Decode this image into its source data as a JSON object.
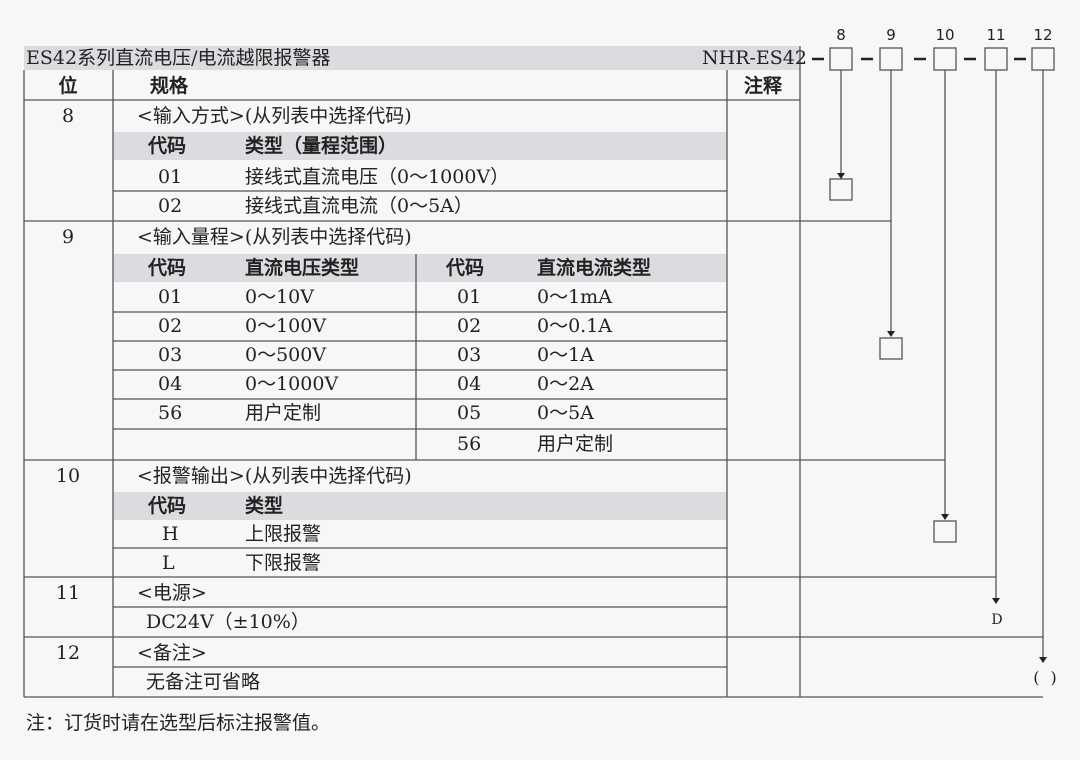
{
  "title": "ES42系列直流电压/电流越限报警器",
  "model": "NHR-ES42",
  "header": {
    "position": "位",
    "spec": "规格",
    "note": "注释"
  },
  "code_positions": [
    "8",
    "9",
    "10",
    "11",
    "12"
  ],
  "sections": [
    {
      "pos": "8",
      "title": "<输入方式>(从列表中选择代码)",
      "col_code": "代码",
      "col_type": "类型（量程范围）",
      "rows": [
        {
          "code": "01",
          "type": "接线式直流电压（0～1000V）"
        },
        {
          "code": "02",
          "type": "接线式直流电流（0～5A）"
        }
      ]
    },
    {
      "pos": "9",
      "title": "<输入量程>(从列表中选择代码)",
      "col_code": "代码",
      "col_type": "直流电压类型",
      "col_code2": "代码",
      "col_type2": "直流电流类型",
      "left": [
        {
          "code": "01",
          "type": "0～10V"
        },
        {
          "code": "02",
          "type": "0～100V"
        },
        {
          "code": "03",
          "type": "0～500V"
        },
        {
          "code": "04",
          "type": "0～1000V"
        },
        {
          "code": "56",
          "type": "用户定制"
        }
      ],
      "right": [
        {
          "code": "01",
          "type": "0～1mA"
        },
        {
          "code": "02",
          "type": "0～0.1A"
        },
        {
          "code": "03",
          "type": "0～1A"
        },
        {
          "code": "04",
          "type": "0～2A"
        },
        {
          "code": "05",
          "type": "0～5A"
        },
        {
          "code": "56",
          "type": "用户定制"
        }
      ]
    },
    {
      "pos": "10",
      "title": "<报警输出>(从列表中选择代码)",
      "col_code": "代码",
      "col_type": "类型",
      "rows": [
        {
          "code": "H",
          "type": "上限报警"
        },
        {
          "code": "L",
          "type": "下限报警"
        }
      ]
    },
    {
      "pos": "11",
      "title": "<电源>",
      "value": "DC24V（±10%）",
      "result": "D"
    },
    {
      "pos": "12",
      "title": "<备注>",
      "value": "无备注可省略",
      "result": "( )"
    }
  ],
  "footnote": "注：订货时请在选型后标注报警值。",
  "colors": {
    "background": "#f7f7f7",
    "header_fill": "#dcdce0",
    "line": "#555555"
  }
}
